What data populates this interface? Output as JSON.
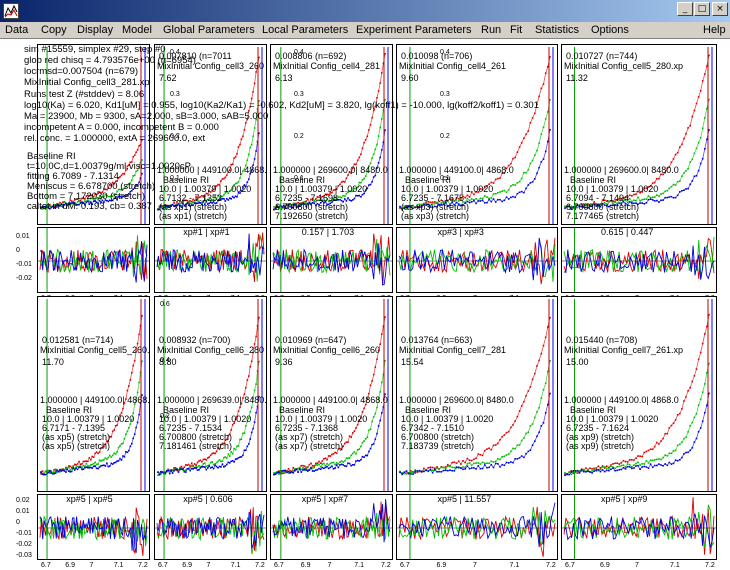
{
  "window": {
    "buttons": [
      "_",
      "□",
      "×"
    ]
  },
  "menu": [
    "Data",
    "Copy",
    "Display",
    "Model",
    "Global Parameters",
    "Local Parameters",
    "Experiment Parameters",
    "Run",
    "Fit",
    "Statistics",
    "Options",
    "Help"
  ],
  "info_lines": [
    "sim #15559, simplex #29, step #0",
    "glob red chisq = 4.793576e+00 (n=6954)",
    "locrmsd=0.007504 (n=679)",
    "MixInitial Config_cell3_281.xp",
    "Runs test Z (#stddev) = 8.06",
    "log10(Ka) = 6.020, Kd1[uM] = 0.955, log10(Ka2/Ka1) = -0.602, Kd2[uM] = 3.820, lg(koff1) = -10.000, lg(koff2/koff1) = 0.301",
    "Ma = 23900, Mb = 9300, sA=2.000, sB=3.000, sAB=5.000",
    "incompetent A = 0.000,  incompetent B = 0.000",
    "rel. conc. = 1.000000, extA = 269600.0, ext"
  ],
  "first_panel_lines": [
    "Baseline RI",
    "t=10.0C,d=1.00379g/ml,visc=1.0020cP",
    "fitting 6.7089 - 7.1314",
    "Meniscus = 6.678700  (stretch)",
    "Bottom = 7.172030  (stretch)"
  ],
  "first_residual_label": "caltot in uM: 0.193,  cb= 0.387",
  "panels_top": [
    {
      "rmsd": "0.007810 (n=7011",
      "file": "MixInitial Config_cell3_260",
      "chisq": "7.62",
      "ext": "1.000000 | 449100.0| 4868.0",
      "baseline": "Baseline RI",
      "params": "10.0 | 1.00379 | 1.0020",
      "fit": "6.7132 - 7.1352",
      "lines": [
        "(as xp1) (stretch)",
        "(as xp1) (stretch)"
      ],
      "resid": "xp#1 | xp#1"
    },
    {
      "rmsd": "0.008806 (n=692)",
      "file": "MixInitial Config_cell4_281",
      "chisq": "6.13",
      "ext": "1.000000 | 269600.0| 8480.0",
      "baseline": "Baseline RI",
      "params": "10.0 | 1.00379 | 1.0020",
      "fit": "6.7235 - 7.1698",
      "lines": [
        "6.700800  (stretch)",
        "7.192650  (stretch)"
      ],
      "resid": "0.157 | 1.703"
    },
    {
      "rmsd": "0.010098 (n=706)",
      "file": "MixInitial Config_cell4_261",
      "chisq": "9.60",
      "ext": "1.000000 | 449100.0| 4868.0",
      "baseline": "Baseline RI",
      "params": "10.0 | 1.00379 | 1.0020",
      "fit": "6.7235 - 7.1675",
      "lines": [
        "(as xp3) (stretch)",
        "(as xp3) (stretch)"
      ],
      "resid": "xp#3 | xp#3"
    },
    {
      "rmsd": "0.010727 (n=744)",
      "file": "MixInitial Config_cell5_280.xp",
      "chisq": "11.32",
      "ext": "1.000000 | 269600.0| 8480.0",
      "baseline": "Baseline RI",
      "params": "10.0 | 1.00379 | 1.0020",
      "fit": "6.7094 - 7.1494",
      "lines": [
        "6.700800  (stretch)",
        "7.177465  (stretch)"
      ],
      "resid": "0.615 | 0.447"
    }
  ],
  "panels_bottom": [
    {
      "rmsd": "0.012581 (n=714)",
      "file": "MixInitial Config_cell5_260.xp",
      "chisq": "11.70",
      "ext": "1.000000 | 449100.0| 4868.0",
      "baseline": "Baseline RI",
      "params": "10.0 | 1.00379 | 1.0020",
      "fit": "6.7171 - 7.1395",
      "lines": [
        "(as xp5) (stretch)",
        "(as xp5) (stretch)"
      ],
      "resid": "xp#5 | xp#5"
    },
    {
      "rmsd": "0.008932 (n=700)",
      "file": "MixInitial Config_cell6_280",
      "chisq": "8.80",
      "ext": "1.000000 | 269639.0| 8480.0",
      "baseline": "Baseline RI",
      "params": "10.0 | 1.00379 | 1.0020",
      "fit": "6.7235 - 7.1534",
      "lines": [
        "6.700800  (stretch)",
        "7.181461  (stretch)"
      ],
      "resid": "xp#5 | 0.606"
    },
    {
      "rmsd": "0.010969 (n=647)",
      "file": "MixInitial Config_cell6_260",
      "chisq": "9.36",
      "ext": "1.000000 | 449100.0| 4868.0",
      "baseline": "Baseline RI",
      "params": "10.0 | 1.00379 | 1.0020",
      "fit": "6.7235 - 7.1368",
      "lines": [
        "(as xp7) (stretch)",
        "(as xp7) (stretch)"
      ],
      "resid": "xp#5 | xp#7"
    },
    {
      "rmsd": "0.013764 (n=663)",
      "file": "MixInitial Config_cell7_281",
      "chisq": "15.54",
      "ext": "1.000000 | 269600.0| 8480.0",
      "baseline": "Baseline RI",
      "params": "10.0 | 1.00379 | 1.0020",
      "fit": "6.7342 - 7.1510",
      "lines": [
        "6.700800  (stretch)",
        "7.183739  (stretch)"
      ],
      "resid": "xp#5 | 11.557"
    },
    {
      "rmsd": "0.015440 (n=708)",
      "file": "MixInitial Config_cell7_261.xp",
      "chisq": "15.00",
      "ext": "1.000000 | 449100.0| 4868.0",
      "baseline": "Baseline RI",
      "params": "10.0 | 1.00379 | 1.0020",
      "fit": "6.7235 - 7.1624",
      "lines": [
        "(as xp9) (stretch)",
        "(as xp9) (stretch)"
      ],
      "resid": "xp#5 | xp#9"
    }
  ],
  "axis": {
    "xticks": [
      "6.7",
      "6.9",
      "7",
      "7.1",
      "7.2"
    ],
    "resid_ticks_top": [
      "0.01",
      "0",
      "-0.01",
      "-0.02"
    ],
    "resid_ticks_bottom": [
      "0.02",
      "0.01",
      "0",
      "-0.01",
      "-0.02",
      "-0.03"
    ],
    "yticks_first_col_top": [
      "0.4",
      "0.3",
      "0.2",
      "0.1"
    ],
    "yticks_first_col_bottom": [
      "0.6",
      "0.4",
      "0.2"
    ]
  },
  "colors": {
    "red": "#e00000",
    "green": "#00c000",
    "blue": "#0000e0",
    "marker_green": "#00a000",
    "marker_blue": "#0000ff",
    "marker_red": "#c00000"
  }
}
